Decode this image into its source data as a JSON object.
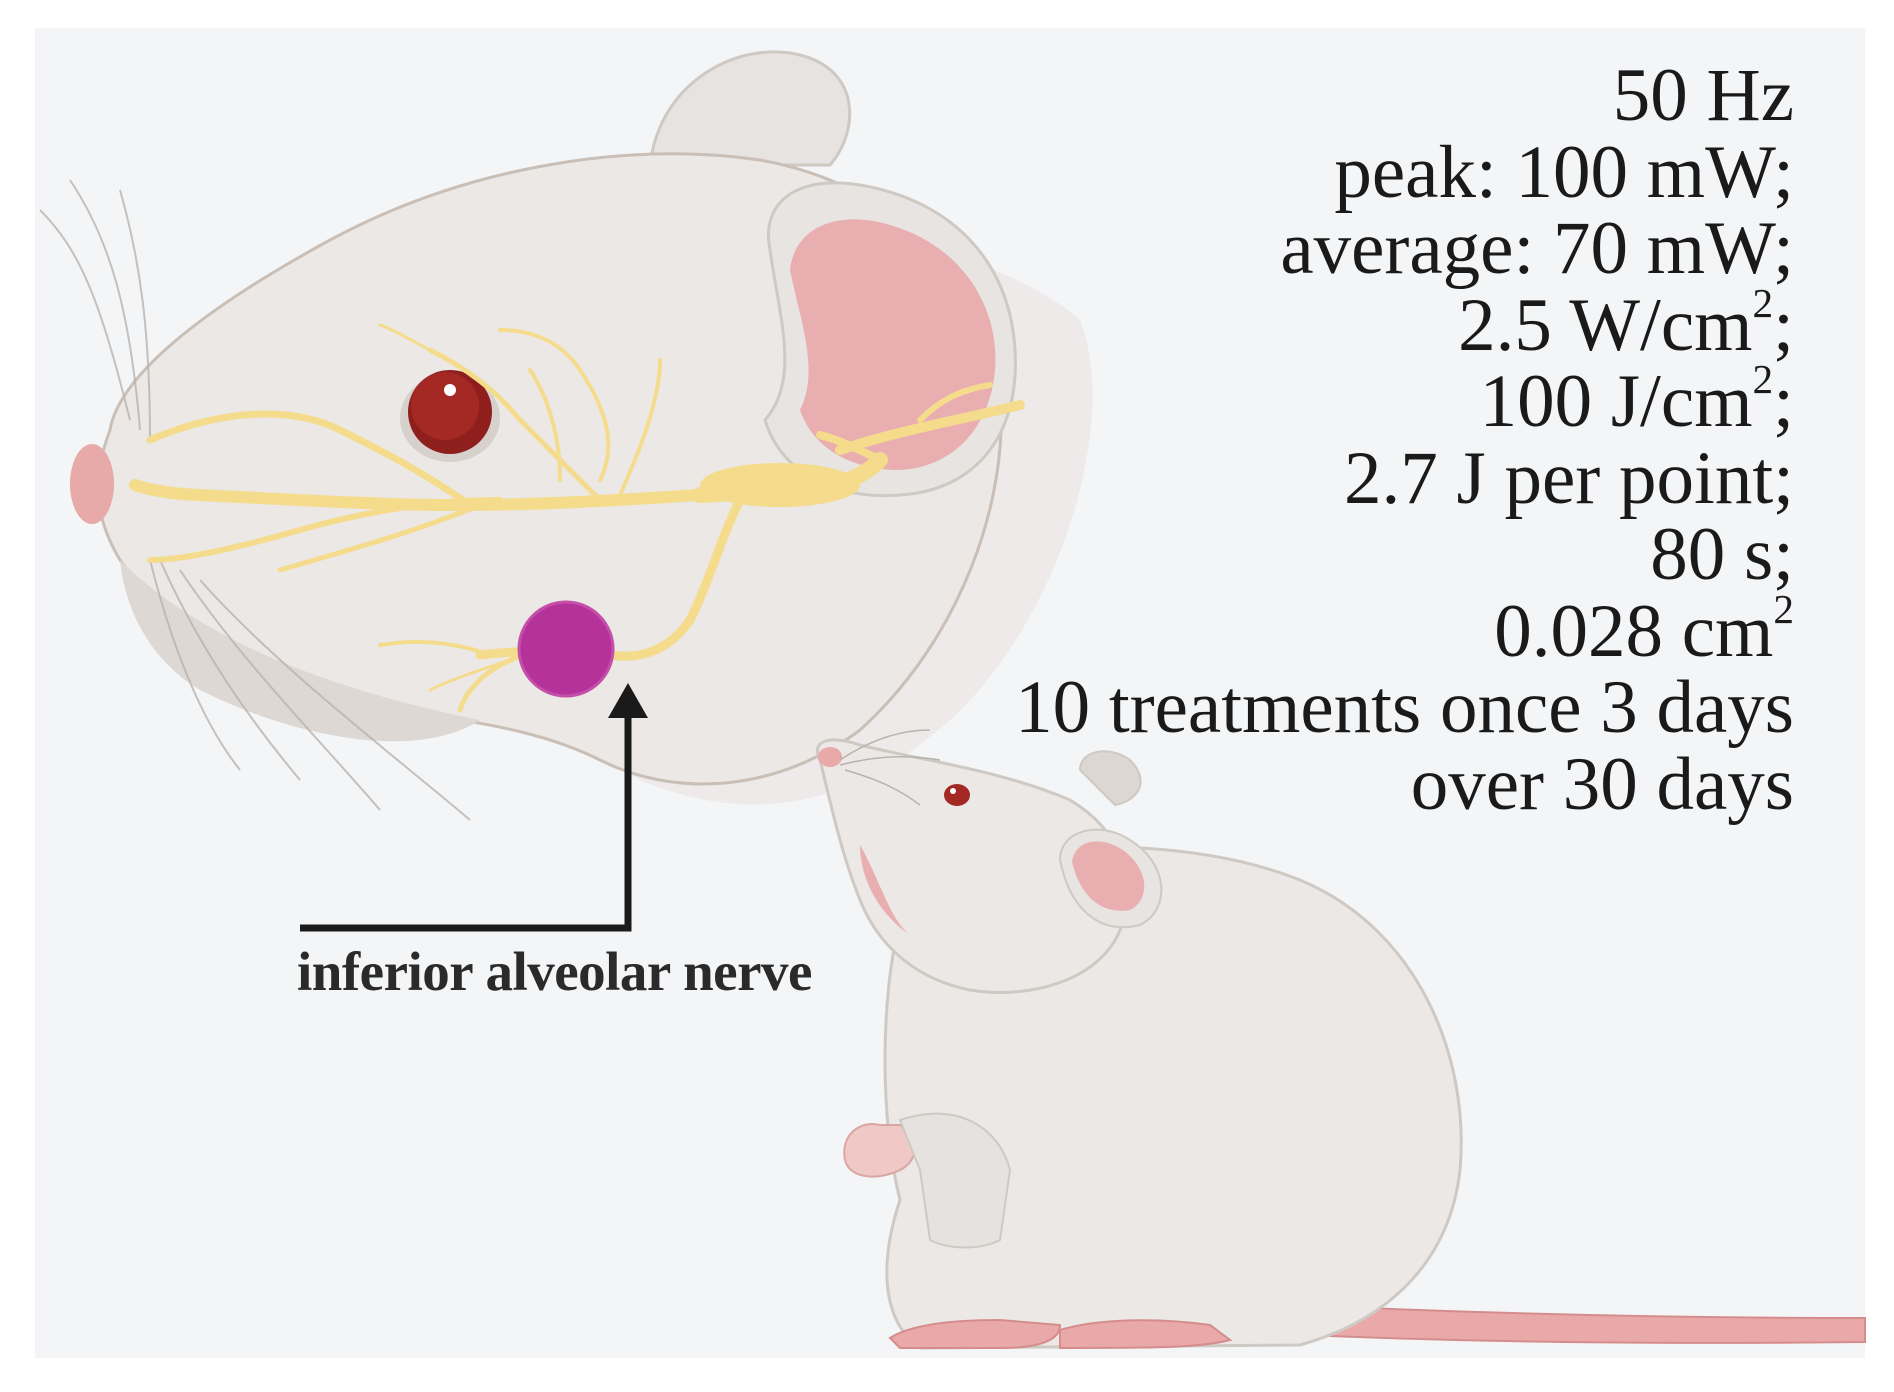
{
  "parameters": [
    {
      "text": "50 Hz",
      "sup": "",
      "tail": ""
    },
    {
      "text": "peak: 100 mW;",
      "sup": "",
      "tail": ""
    },
    {
      "text": "average: 70 mW;",
      "sup": "",
      "tail": ""
    },
    {
      "text": "2.5 W/cm",
      "sup": "2",
      "tail": ";"
    },
    {
      "text": "100 J/cm",
      "sup": "2",
      "tail": ";"
    },
    {
      "text": "2.7 J per point;",
      "sup": "",
      "tail": ""
    },
    {
      "text": "80 s;",
      "sup": "",
      "tail": ""
    },
    {
      "text": "0.028 cm",
      "sup": "2",
      "tail": ""
    },
    {
      "text": "10 treatments once 3 days",
      "sup": "",
      "tail": ""
    },
    {
      "text": "over 30 days",
      "sup": "",
      "tail": ""
    }
  ],
  "label": "inferior alveolar nerve",
  "colors": {
    "background": "#f4f5f7",
    "fur": "#e9e6e4",
    "fur_shadow": "#d8d3cf",
    "nerve": "#f5dc8c",
    "eye": "#8e1f1c",
    "ear_inner": "#e9aeb0",
    "nose": "#e8a9a9",
    "target_point": "#b5329a",
    "arrow": "#1a1a1a"
  },
  "icons": [
    "rat-head-illustration",
    "rat-illustration",
    "nerve-illustration",
    "target-point-icon",
    "arrow-icon"
  ]
}
